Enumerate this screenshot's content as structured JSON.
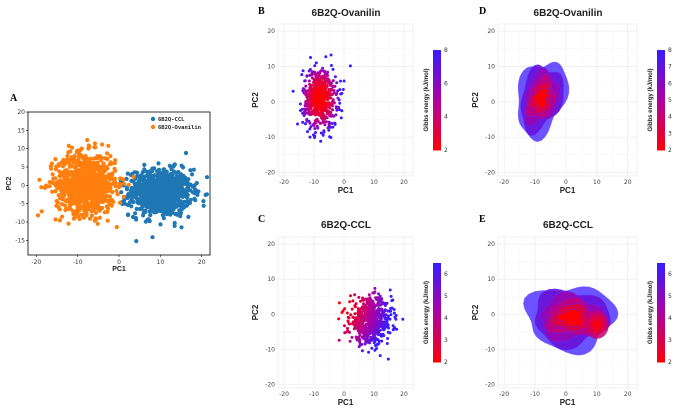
{
  "chart_data": [
    {
      "id": "A",
      "panel_label": "A",
      "type": "scatter",
      "title": "",
      "xlabel": "PC1",
      "ylabel": "PC2",
      "xlim": [
        -22,
        22
      ],
      "ylim": [
        -19,
        20
      ],
      "xticks": [
        -20,
        -10,
        0,
        10,
        20
      ],
      "yticks": [
        -15,
        -10,
        -5,
        0,
        5,
        10,
        15,
        20
      ],
      "grid": false,
      "legend_position": "top-right",
      "series": [
        {
          "name": "6B2Q-CCL",
          "color": "#1f77b4",
          "center": [
            10,
            -2
          ],
          "spread": [
            5,
            4.2
          ],
          "count": 900
        },
        {
          "name": "6B2Q-Ovanilin",
          "color": "#ff7f0e",
          "center": [
            -8,
            0.5
          ],
          "spread": [
            4.8,
            5.5
          ],
          "count": 900
        }
      ]
    },
    {
      "id": "B",
      "panel_label": "B",
      "type": "scatter",
      "title": "6B2Q-Ovanilin",
      "xlabel": "PC1",
      "ylabel": "PC2",
      "xlim": [
        -22,
        23
      ],
      "ylim": [
        -21,
        22
      ],
      "xticks": [
        -20,
        -10,
        0,
        10,
        20
      ],
      "yticks": [
        -20,
        -10,
        0,
        10,
        20
      ],
      "grid": true,
      "colorbar": {
        "label": "Gibbs energy (kJ/mol)",
        "min": 2,
        "max": 8,
        "ticks": [
          2,
          4,
          6,
          8
        ]
      },
      "center": [
        -8,
        1
      ],
      "spread": [
        4,
        6
      ],
      "count": 650
    },
    {
      "id": "C",
      "panel_label": "C",
      "type": "scatter",
      "title": "6B2Q-CCL",
      "xlabel": "PC1",
      "ylabel": "PC2",
      "xlim": [
        -22,
        23
      ],
      "ylim": [
        -21,
        22
      ],
      "xticks": [
        -20,
        -10,
        0,
        10,
        20
      ],
      "yticks": [
        -20,
        -10,
        0,
        10,
        20
      ],
      "grid": true,
      "colorbar": {
        "label": "Gibbs energy (kJ/mol)",
        "min": 2,
        "max": 6.5,
        "ticks": [
          2,
          3,
          4,
          5,
          6
        ]
      },
      "center": [
        9,
        -2
      ],
      "spread": [
        5,
        4.5
      ],
      "count": 650
    },
    {
      "id": "D",
      "panel_label": "D",
      "type": "heatmap",
      "title": "6B2Q-Ovanilin",
      "xlabel": "PC1",
      "ylabel": "PC2",
      "xlim": [
        -22,
        23
      ],
      "ylim": [
        -21,
        22
      ],
      "xticks": [
        -20,
        -10,
        0,
        10,
        20
      ],
      "yticks": [
        -20,
        -10,
        0,
        10,
        20
      ],
      "grid": true,
      "colorbar": {
        "label": "Gibbs energy (kJ/mol)",
        "min": 2,
        "max": 8,
        "ticks": [
          2,
          3,
          4,
          5,
          6,
          7,
          8
        ]
      },
      "center": [
        -8,
        1
      ],
      "spread": [
        5.5,
        7.5
      ]
    },
    {
      "id": "E",
      "panel_label": "E",
      "type": "heatmap",
      "title": "6B2Q-CCL",
      "xlabel": "PC1",
      "ylabel": "PC2",
      "xlim": [
        -22,
        23
      ],
      "ylim": [
        -21,
        22
      ],
      "xticks": [
        -20,
        -10,
        0,
        10,
        20
      ],
      "yticks": [
        -20,
        -10,
        0,
        10,
        20
      ],
      "grid": true,
      "colorbar": {
        "label": "Gibbs energy (kJ/mol)",
        "min": 2,
        "max": 6.5,
        "ticks": [
          2,
          3,
          4,
          5,
          6
        ]
      },
      "center": [
        2,
        -1
      ],
      "spread": [
        10,
        6.5
      ]
    }
  ],
  "colors": {
    "low": "#ff0000",
    "mid": "#b000a0",
    "high": "#3a1cff"
  }
}
